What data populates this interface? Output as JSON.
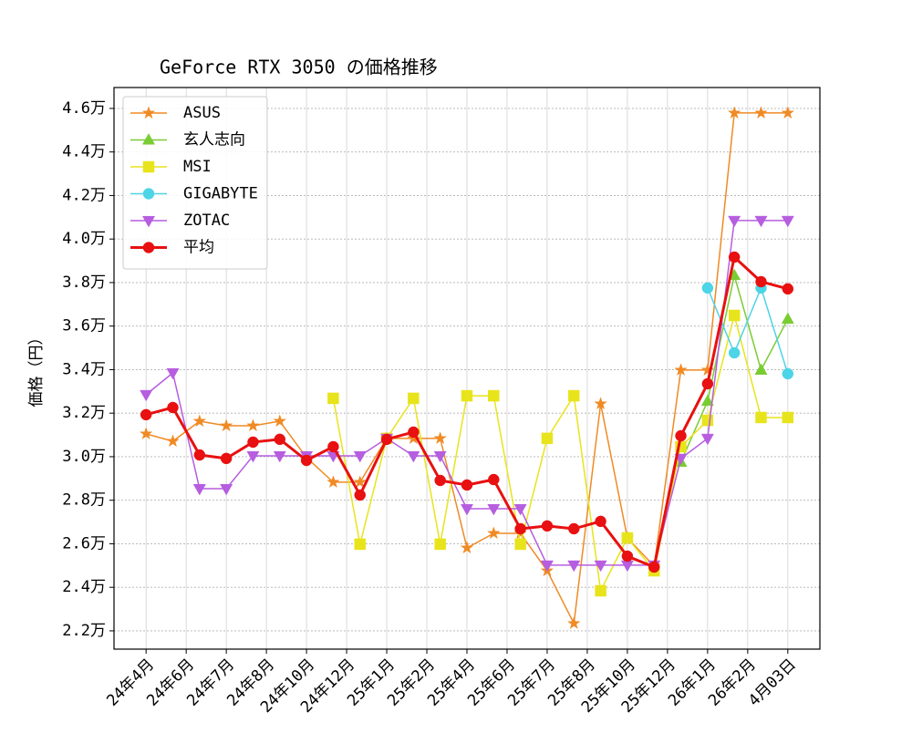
{
  "chart_data": {
    "type": "line",
    "title": "GeForce RTX 3050 の価格推移",
    "y_label": "価格（円）",
    "x": [
      0,
      1,
      2,
      3,
      4,
      5,
      6,
      7,
      8,
      9,
      10,
      11,
      12,
      13,
      14,
      15,
      16,
      17,
      18,
      19,
      20,
      21,
      22,
      23,
      24
    ],
    "xlim": [
      -1.2,
      25.2
    ],
    "xticks": [
      {
        "value": 0,
        "label": "24年4月"
      },
      {
        "value": 1.5,
        "label": "24年6月"
      },
      {
        "value": 3,
        "label": "24年7月"
      },
      {
        "value": 4.5,
        "label": "24年8月"
      },
      {
        "value": 6,
        "label": "24年10月"
      },
      {
        "value": 7.5,
        "label": "24年12月"
      },
      {
        "value": 9,
        "label": "25年1月"
      },
      {
        "value": 10.5,
        "label": "25年2月"
      },
      {
        "value": 12,
        "label": "25年4月"
      },
      {
        "value": 13.5,
        "label": "25年6月"
      },
      {
        "value": 15,
        "label": "25年7月"
      },
      {
        "value": 16.5,
        "label": "25年8月"
      },
      {
        "value": 18,
        "label": "25年10月"
      },
      {
        "value": 19.5,
        "label": "25年12月"
      },
      {
        "value": 21,
        "label": "26年1月"
      },
      {
        "value": 22.5,
        "label": "26年2月"
      },
      {
        "value": 24,
        "label": "4月03日"
      }
    ],
    "ylim": [
      21160,
      46960
    ],
    "yticks": [
      {
        "value": 22000,
        "label": "2.2万"
      },
      {
        "value": 24000,
        "label": "2.4万"
      },
      {
        "value": 26000,
        "label": "2.6万"
      },
      {
        "value": 28000,
        "label": "2.8万"
      },
      {
        "value": 30000,
        "label": "3.0万"
      },
      {
        "value": 32000,
        "label": "3.2万"
      },
      {
        "value": 34000,
        "label": "3.4万"
      },
      {
        "value": 36000,
        "label": "3.6万"
      },
      {
        "value": 38000,
        "label": "3.8万"
      },
      {
        "value": 40000,
        "label": "4.0万"
      },
      {
        "value": 42000,
        "label": "4.2万"
      },
      {
        "value": 44000,
        "label": "4.4万"
      },
      {
        "value": 46000,
        "label": "4.6万"
      }
    ],
    "grid": true,
    "legend": "upper left",
    "series": [
      {
        "name": "ASUS",
        "color": "#f08a24",
        "marker": "star",
        "width": 1.5,
        "values": [
          31050,
          30710,
          31630,
          31420,
          31420,
          31630,
          29960,
          28830,
          28830,
          30840,
          30840,
          30840,
          25810,
          26480,
          26480,
          24760,
          22340,
          32430,
          26270,
          24970,
          33980,
          33980,
          45790,
          45790,
          45790
        ]
      },
      {
        "name": "玄人志向",
        "color": "#7acc33",
        "marker": "triangle-up",
        "width": 1.5,
        "values": [
          null,
          null,
          null,
          null,
          null,
          null,
          null,
          null,
          null,
          null,
          null,
          null,
          null,
          null,
          null,
          null,
          null,
          null,
          null,
          null,
          29750,
          32550,
          38330,
          33980,
          36320
        ]
      },
      {
        "name": "MSI",
        "color": "#e8e41c",
        "marker": "square",
        "width": 1.5,
        "values": [
          null,
          null,
          null,
          null,
          null,
          null,
          null,
          32680,
          25980,
          30840,
          32680,
          25980,
          32800,
          32800,
          25980,
          30840,
          32800,
          23840,
          26270,
          24760,
          30460,
          31670,
          36490,
          31800,
          31800
        ]
      },
      {
        "name": "GIGABYTE",
        "color": "#4dd4e6",
        "marker": "circle",
        "width": 1.5,
        "values": [
          null,
          null,
          null,
          null,
          null,
          null,
          null,
          null,
          null,
          null,
          null,
          null,
          null,
          null,
          null,
          null,
          null,
          null,
          null,
          null,
          null,
          37750,
          34770,
          37750,
          33810
        ]
      },
      {
        "name": "ZOTAC",
        "color": "#b65de0",
        "marker": "triangle-down",
        "width": 1.5,
        "values": [
          32850,
          33850,
          28530,
          28530,
          30040,
          30040,
          30040,
          30040,
          30040,
          30840,
          30040,
          30040,
          27610,
          27610,
          27610,
          25020,
          25020,
          25020,
          25020,
          25020,
          29920,
          30840,
          40850,
          40850,
          40850
        ]
      },
      {
        "name": "平均",
        "color": "#e81010",
        "marker": "circle",
        "width": 3,
        "values": [
          31930,
          32260,
          30080,
          29920,
          30670,
          30800,
          29830,
          30460,
          28240,
          30800,
          31130,
          28910,
          28700,
          28950,
          26690,
          26820,
          26690,
          27030,
          25430,
          24930,
          30960,
          33350,
          39170,
          38040,
          37710
        ]
      }
    ]
  }
}
